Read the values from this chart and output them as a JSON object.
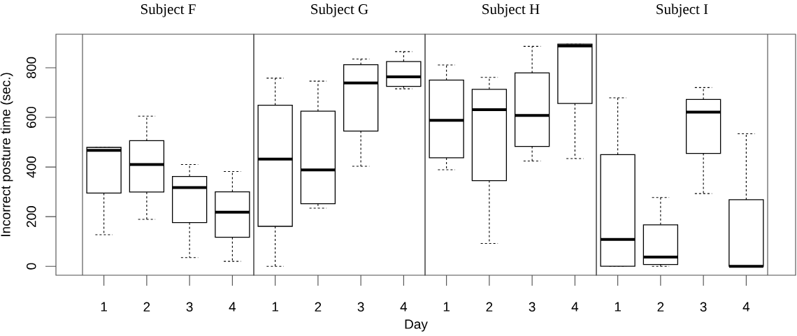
{
  "chart_data": [
    {
      "type": "box",
      "title": "Subject F",
      "ylabel": "Incorrect posture time (sec.)",
      "categories": [
        "1",
        "2",
        "3",
        "4"
      ],
      "ylim": [
        -36,
        935
      ],
      "yticks": [
        0,
        200,
        400,
        600,
        800
      ],
      "boxes": [
        {
          "low": 127,
          "q1": 295,
          "median": 467,
          "q3": 479,
          "high": 479
        },
        {
          "low": 189,
          "q1": 299,
          "median": 410,
          "q3": 506,
          "high": 605
        },
        {
          "low": 35,
          "q1": 176,
          "median": 317,
          "q3": 362,
          "high": 410
        },
        {
          "low": 20,
          "q1": 117,
          "median": 218,
          "q3": 300,
          "high": 382
        }
      ]
    },
    {
      "type": "box",
      "title": "Subject G",
      "xlabel": "Day",
      "categories": [
        "1",
        "2",
        "3",
        "4"
      ],
      "ylim": [
        -36,
        935
      ],
      "tick_labels": "x",
      "boxes": [
        {
          "low": 0,
          "q1": 161,
          "median": 432,
          "q3": 649,
          "high": 758
        },
        {
          "low": 234,
          "q1": 252,
          "median": 388,
          "q3": 625,
          "high": 746
        },
        {
          "low": 403,
          "q1": 545,
          "median": 739,
          "q3": 812,
          "high": 835
        },
        {
          "low": 715,
          "q1": 725,
          "median": 763,
          "q3": 825,
          "high": 865
        }
      ]
    },
    {
      "type": "box",
      "title": "Subject H",
      "categories": [
        "1",
        "2",
        "3",
        "4"
      ],
      "ylim": [
        -36,
        935
      ],
      "tick_labels": "x",
      "boxes": [
        {
          "low": 389,
          "q1": 437,
          "median": 588,
          "q3": 750,
          "high": 811
        },
        {
          "low": 92,
          "q1": 345,
          "median": 631,
          "q3": 713,
          "high": 761
        },
        {
          "low": 424,
          "q1": 483,
          "median": 608,
          "q3": 779,
          "high": 886
        },
        {
          "low": 434,
          "q1": 656,
          "median": 888,
          "q3": 895,
          "high": 895
        }
      ]
    },
    {
      "type": "box",
      "title": "Subject I",
      "categories": [
        "1",
        "2",
        "3",
        "4"
      ],
      "ylim": [
        -36,
        935
      ],
      "tick_labels": "x",
      "boxes": [
        {
          "low": 0,
          "q1": 0,
          "median": 108,
          "q3": 450,
          "high": 679
        },
        {
          "low": 0,
          "q1": 7,
          "median": 37,
          "q3": 167,
          "high": 277
        },
        {
          "low": 293,
          "q1": 455,
          "median": 621,
          "q3": 672,
          "high": 720
        },
        {
          "low": 0,
          "q1": 0,
          "median": 0,
          "q3": 268,
          "high": 534
        }
      ]
    }
  ]
}
